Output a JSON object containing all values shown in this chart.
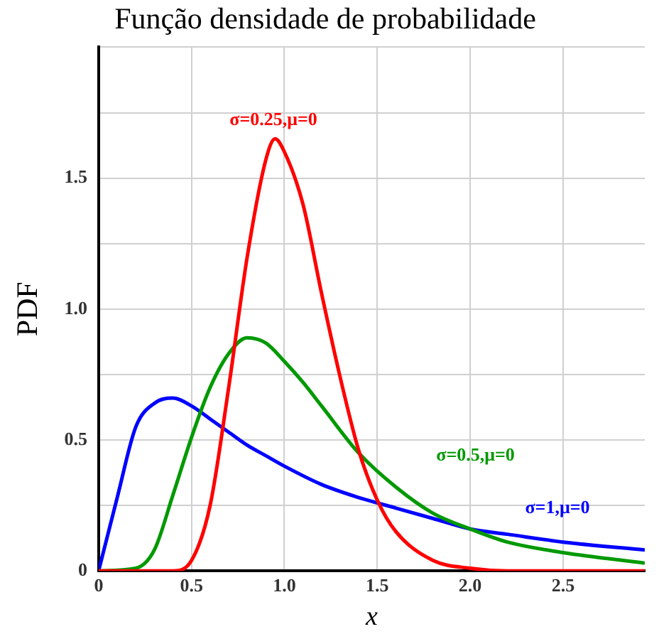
{
  "chart_data": {
    "type": "line",
    "title": "Função densidade de probabilidade",
    "xlabel": "x",
    "ylabel": "PDF",
    "xlim": [
      0,
      2.94
    ],
    "xticks": [
      0,
      0.5,
      {
        "value": 1,
        "label": "1.0"
      },
      1.5,
      {
        "value": 2,
        "label": "2.0"
      },
      2.5
    ],
    "ylim": [
      0,
      2
    ],
    "yticks": [
      0,
      {
        "value": 0.25,
        "label": null
      },
      0.5,
      {
        "value": 0.75,
        "label": null
      },
      {
        "value": 1,
        "label": "1.0"
      },
      {
        "value": 1.25,
        "label": null
      },
      1.5,
      {
        "value": 1.75,
        "label": null
      },
      {
        "value": 2,
        "label": null
      }
    ],
    "grid": true,
    "legend": false,
    "marker": "none",
    "line_style": "solid",
    "series": [
      {
        "name": "σ=0.25,μ=0",
        "color": "#ff0000",
        "x": [
          0,
          0.4,
          0.5,
          0.6,
          0.7,
          0.8,
          0.9,
          0.95,
          1.0,
          1.1,
          1.2,
          1.3,
          1.4,
          1.5,
          1.6,
          1.8,
          2.0,
          2.2,
          2.94
        ],
        "values": [
          0,
          0,
          0.04,
          0.25,
          0.7,
          1.2,
          1.57,
          1.65,
          1.6,
          1.4,
          1.06,
          0.74,
          0.46,
          0.27,
          0.15,
          0.04,
          0.01,
          0,
          0
        ]
      },
      {
        "name": "σ=0.5,μ=0",
        "color": "#009900",
        "x": [
          0,
          0.2,
          0.3,
          0.4,
          0.5,
          0.6,
          0.7,
          0.8,
          0.9,
          1.0,
          1.1,
          1.2,
          1.4,
          1.6,
          1.8,
          2.0,
          2.2,
          2.5,
          2.94
        ],
        "values": [
          0,
          0.01,
          0.08,
          0.29,
          0.51,
          0.7,
          0.83,
          0.89,
          0.87,
          0.8,
          0.72,
          0.63,
          0.45,
          0.32,
          0.22,
          0.16,
          0.11,
          0.07,
          0.03
        ]
      },
      {
        "name": "σ=1,μ=0",
        "color": "#0000ff",
        "x": [
          0,
          0.1,
          0.2,
          0.3,
          0.4,
          0.5,
          0.6,
          0.7,
          0.8,
          0.9,
          1.0,
          1.2,
          1.4,
          1.6,
          1.8,
          2.0,
          2.2,
          2.5,
          2.94
        ],
        "values": [
          0,
          0.28,
          0.55,
          0.64,
          0.66,
          0.63,
          0.58,
          0.53,
          0.48,
          0.44,
          0.4,
          0.33,
          0.28,
          0.24,
          0.2,
          0.16,
          0.14,
          0.11,
          0.08
        ]
      }
    ]
  }
}
